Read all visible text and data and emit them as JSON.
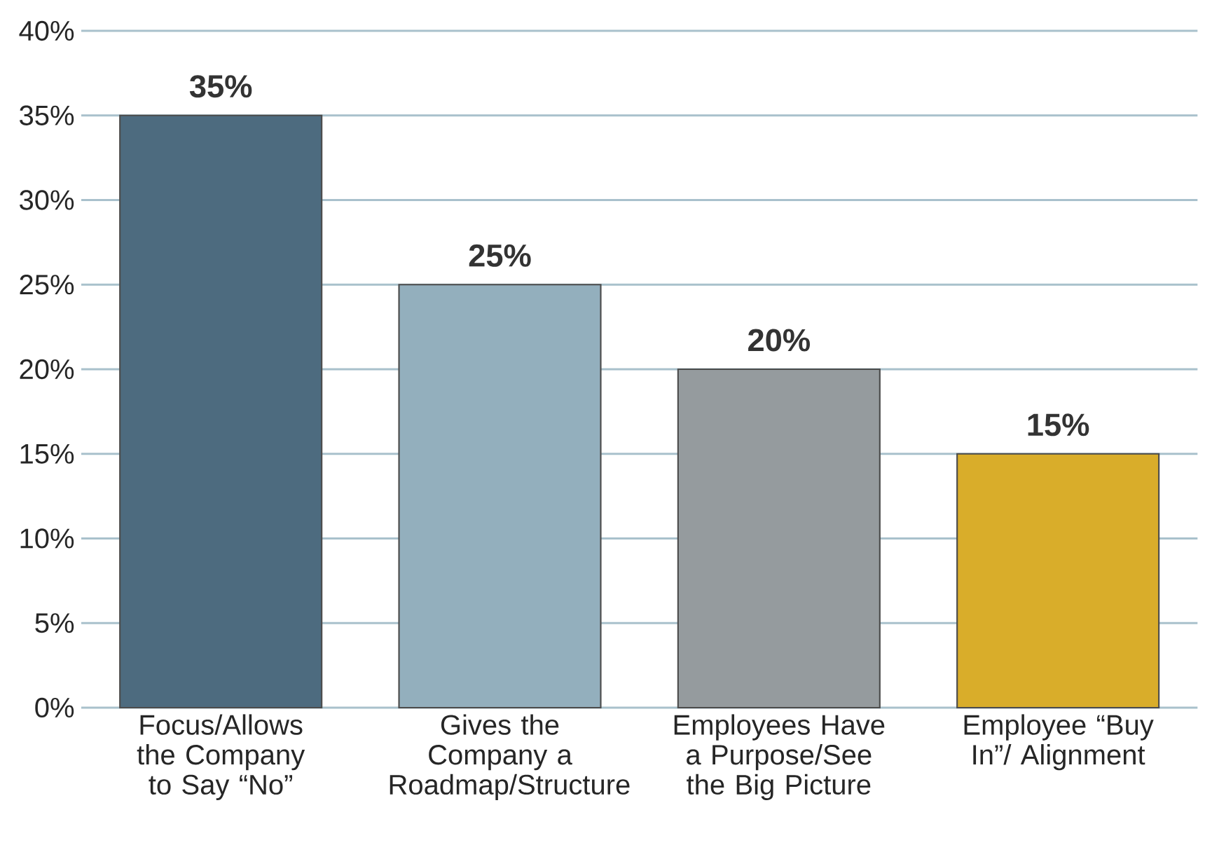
{
  "chart_data": {
    "type": "bar",
    "categories": [
      "Focus/Allows the Company to Say “No”",
      "Gives the Company a Roadmap/Structure",
      "Employees Have a Purpose/See the Big Picture",
      "Employee “Buy In”/ Alignment"
    ],
    "values": [
      35,
      25,
      20,
      15
    ],
    "colors": [
      "#4d6b7f",
      "#93afbd",
      "#959b9e",
      "#d9ad2a"
    ],
    "value_labels": [
      "35%",
      "25%",
      "20%",
      "15%"
    ],
    "ylim": [
      0,
      40
    ],
    "yticks": [
      {
        "value": 0,
        "label": "0%"
      },
      {
        "value": 5,
        "label": "5%"
      },
      {
        "value": 10,
        "label": "10%"
      },
      {
        "value": 15,
        "label": "15%"
      },
      {
        "value": 20,
        "label": "20%"
      },
      {
        "value": 25,
        "label": "25%"
      },
      {
        "value": 30,
        "label": "30%"
      },
      {
        "value": 35,
        "label": "35%"
      },
      {
        "value": 40,
        "label": "40%"
      }
    ],
    "grid": "y"
  }
}
